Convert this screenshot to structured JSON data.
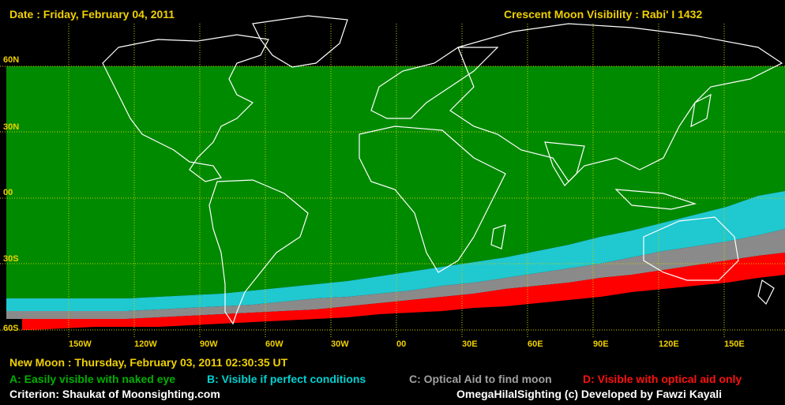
{
  "header": {
    "date": "Date : Friday, February 04, 2011",
    "title": "Crescent Moon Visibility : Rabi' I  1432"
  },
  "lat_labels": [
    "60N",
    "30N",
    "00",
    "30S",
    "60S"
  ],
  "lon_labels": [
    "150W",
    "120W",
    "90W",
    "60W",
    "30W",
    "00",
    "30E",
    "60E",
    "90E",
    "120E",
    "150E"
  ],
  "footer": {
    "new_moon": "New Moon : Thursday, February 03, 2011  02:30:35  UT",
    "criterion": "Criterion: Shaukat of Moonsighting.com",
    "credits": "OmegaHilalSighting  (c)  Developed by Fawzi Kayali"
  },
  "legend": [
    {
      "label": "A: Easily visible with naked eye",
      "color": "#00b000"
    },
    {
      "label": "B: Visible if perfect conditions",
      "color": "#00d0d0"
    },
    {
      "label": "C: Optical Aid to find moon",
      "color": "#a0a0a0"
    },
    {
      "label": "D: Visible with optical aid only",
      "color": "#ff1010"
    }
  ],
  "colors": {
    "zone_a": "#008a00",
    "zone_b": "#20c8d0",
    "zone_c": "#8a8a8a",
    "zone_d": "#ff0000",
    "not_visible": "#000000",
    "grid": "#d0d000",
    "coast": "#ffffff"
  }
}
